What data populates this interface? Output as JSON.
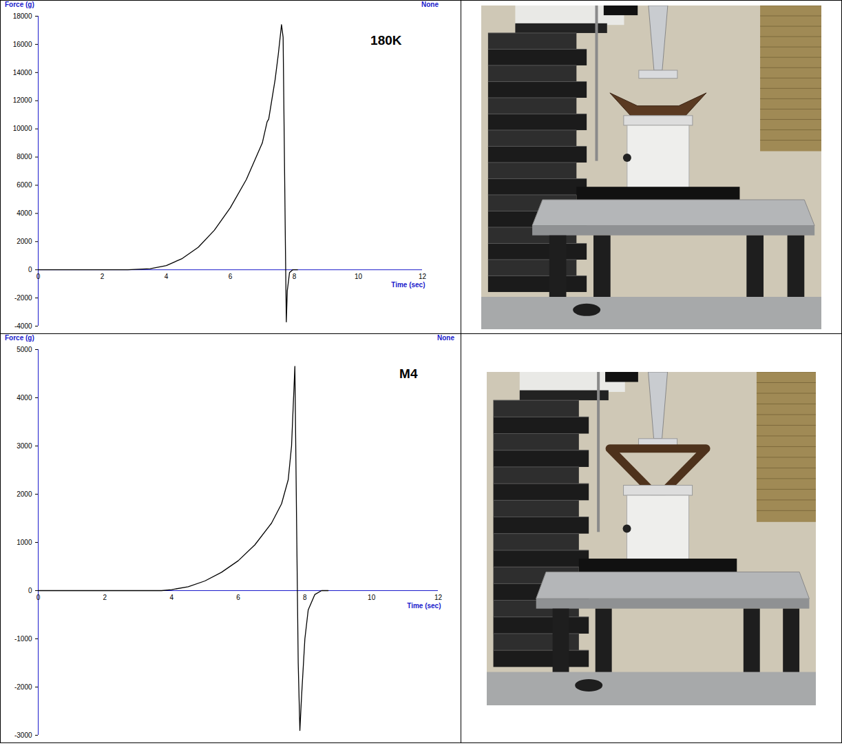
{
  "chart_data": [
    {
      "type": "line",
      "title": "180K",
      "x_label": "Time (sec)",
      "y_label": "Force (g)",
      "annotations": [
        "None"
      ],
      "x": [
        0,
        2.8,
        3.5,
        4,
        4.5,
        5,
        5.5,
        6,
        6.5,
        7,
        7.1,
        7.15,
        7.2,
        7.4,
        7.5,
        7.6,
        7.65,
        7.72,
        7.75,
        7.78,
        7.85,
        7.95,
        8.1
      ],
      "values": [
        0,
        0,
        80,
        300,
        800,
        1600,
        2800,
        4400,
        6400,
        9000,
        10000,
        10500,
        10700,
        13500,
        15300,
        17400,
        16500,
        2000,
        -3700,
        -1500,
        -200,
        0,
        0
      ],
      "color": "#000000",
      "grid": false,
      "xlim": [
        0,
        12
      ],
      "xticks": [
        0,
        2,
        4,
        6,
        8,
        10,
        12
      ],
      "ylim": [
        -4000,
        18000
      ],
      "yticks": [
        -4000,
        -2000,
        0,
        2000,
        4000,
        6000,
        8000,
        10000,
        12000,
        14000,
        16000,
        18000
      ]
    },
    {
      "type": "line",
      "title": "M4",
      "x_label": "Time (sec)",
      "y_label": "Force (g)",
      "annotations": [
        "None"
      ],
      "x": [
        0,
        3.7,
        4,
        4.5,
        5,
        5.5,
        6,
        6.5,
        7,
        7.3,
        7.5,
        7.6,
        7.7,
        7.75,
        7.8,
        7.85,
        7.9,
        8.0,
        8.1,
        8.3,
        8.5,
        8.7
      ],
      "values": [
        0,
        0,
        20,
        80,
        200,
        380,
        620,
        950,
        1400,
        1800,
        2300,
        3000,
        4650,
        1500,
        -1500,
        -2900,
        -2200,
        -1000,
        -400,
        -80,
        0,
        0
      ],
      "color": "#000000",
      "grid": false,
      "xlim": [
        0,
        12
      ],
      "xticks": [
        0,
        2,
        4,
        6,
        8,
        10,
        12
      ],
      "ylim": [
        -3000,
        5000
      ],
      "yticks": [
        -3000,
        -2000,
        -1000,
        0,
        1000,
        2000,
        3000,
        4000,
        5000
      ]
    }
  ]
}
